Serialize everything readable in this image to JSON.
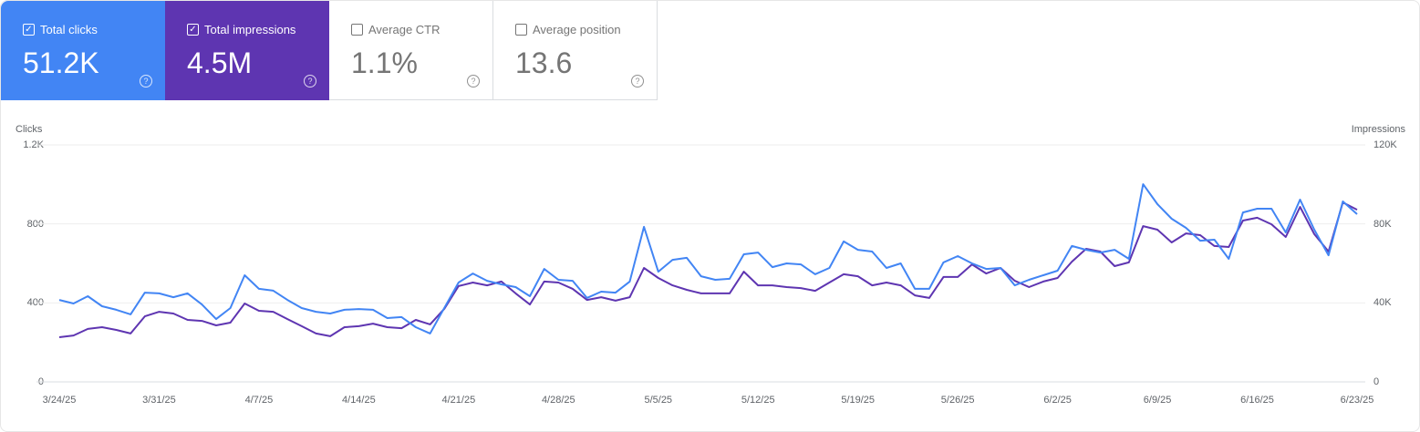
{
  "metrics": [
    {
      "label": "Total clicks",
      "value": "51.2K",
      "checked": true,
      "color": "#4285f4"
    },
    {
      "label": "Total impressions",
      "value": "4.5M",
      "checked": true,
      "color": "#5e35b1"
    },
    {
      "label": "Average CTR",
      "value": "1.1%",
      "checked": false
    },
    {
      "label": "Average position",
      "value": "13.6",
      "checked": false
    }
  ],
  "icons": {
    "checkbox": "checkbox-icon",
    "help": "help-circle-icon"
  },
  "chart_data": {
    "type": "line",
    "ylabel_left": "Clicks",
    "ylabel_right": "Impressions",
    "ylim_left": [
      0,
      1200
    ],
    "ylim_right": [
      0,
      120000
    ],
    "yticks_left": [
      "0",
      "400",
      "800",
      "1.2K"
    ],
    "yticks_right": [
      "0",
      "40K",
      "80K",
      "120K"
    ],
    "xticks": [
      "3/24/25",
      "3/31/25",
      "4/7/25",
      "4/14/25",
      "4/21/25",
      "4/28/25",
      "5/5/25",
      "5/12/25",
      "5/19/25",
      "5/26/25",
      "6/2/25",
      "6/9/25",
      "6/16/25",
      "6/23/25"
    ],
    "x_start": "2025-03-24",
    "x_end": "2025-06-23",
    "grid": true,
    "series": [
      {
        "name": "Clicks",
        "axis": "left",
        "color": "#4285f4",
        "values": [
          415,
          397,
          434,
          383,
          365,
          342,
          452,
          448,
          429,
          448,
          392,
          318,
          374,
          540,
          471,
          462,
          415,
          374,
          355,
          346,
          365,
          369,
          365,
          323,
          328,
          277,
          245,
          375,
          503,
          549,
          512,
          494,
          480,
          434,
          572,
          517,
          512,
          425,
          457,
          452,
          508,
          785,
          558,
          618,
          628,
          535,
          517,
          522,
          646,
          655,
          581,
          600,
          595,
          545,
          577,
          711,
          669,
          660,
          577,
          600,
          471,
          471,
          605,
          637,
          600,
          572,
          577,
          489,
          517,
          540,
          563,
          688,
          669,
          655,
          669,
          623,
          1001,
          900,
          826,
          780,
          715,
          720,
          623,
          858,
          877,
          877,
          757,
          923,
          771,
          641,
          914,
          849
        ]
      },
      {
        "name": "Impressions",
        "axis": "right",
        "color": "#5e35b1",
        "values": [
          22600,
          23500,
          26800,
          27700,
          26300,
          24500,
          33200,
          35500,
          34600,
          31400,
          30900,
          28600,
          30000,
          39700,
          36000,
          35500,
          31800,
          28200,
          24500,
          23100,
          27700,
          28200,
          29500,
          27700,
          27200,
          31400,
          29100,
          37000,
          48500,
          50300,
          48900,
          50800,
          44800,
          39200,
          50800,
          50300,
          47100,
          41500,
          42900,
          41100,
          42900,
          57700,
          52600,
          48900,
          46600,
          44800,
          44800,
          44800,
          55800,
          48900,
          48900,
          48000,
          47500,
          46100,
          50300,
          54500,
          53500,
          48900,
          50300,
          48900,
          43800,
          42500,
          53100,
          53100,
          59500,
          54900,
          57700,
          51200,
          48000,
          50800,
          52600,
          60900,
          67400,
          66000,
          58600,
          60500,
          78900,
          77100,
          70600,
          75200,
          74300,
          68800,
          68300,
          81700,
          83100,
          79800,
          73400,
          88600,
          74800,
          66000,
          90900,
          87200
        ]
      }
    ]
  }
}
